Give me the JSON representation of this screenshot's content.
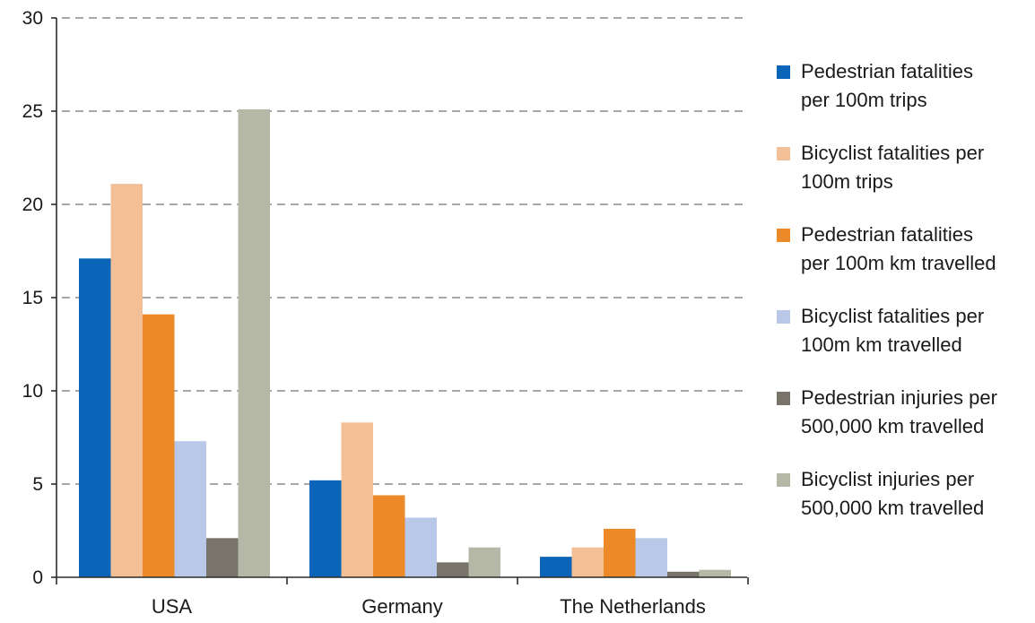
{
  "chart_data": {
    "type": "bar",
    "title": "",
    "xlabel": "",
    "ylabel": "",
    "categories": [
      "USA",
      "Germany",
      "The Netherlands"
    ],
    "ylim": [
      0,
      30
    ],
    "yticks": [
      0,
      5,
      10,
      15,
      20,
      25,
      30
    ],
    "grid": true,
    "legend_position": "right",
    "series": [
      {
        "name": "Pedestrian fatalities per 100m trips",
        "legend_lines": [
          "Pedestrian fatalities",
          "per 100m trips"
        ],
        "color": "#0a64b8",
        "values": [
          17.1,
          5.2,
          1.1
        ]
      },
      {
        "name": "Bicyclist fatalities per 100m trips",
        "legend_lines": [
          "Bicyclist fatalities per",
          "100m trips"
        ],
        "color": "#f3bf97",
        "values": [
          21.1,
          8.3,
          1.6
        ]
      },
      {
        "name": "Pedestrian fatalities per 100m km travelled",
        "legend_lines": [
          "Pedestrian fatalities",
          "per 100m km travelled"
        ],
        "color": "#ec8a28",
        "values": [
          14.1,
          4.4,
          2.6
        ]
      },
      {
        "name": "Bicyclist fatalities per 100m km travelled",
        "legend_lines": [
          "Bicyclist fatalities per",
          "100m km travelled"
        ],
        "color": "#b9c8e9",
        "values": [
          7.3,
          3.2,
          2.1
        ]
      },
      {
        "name": "Pedestrian injuries per 500,000 km travelled",
        "legend_lines": [
          "Pedestrian injuries per",
          "500,000 km travelled"
        ],
        "color": "#78746a",
        "values": [
          2.1,
          0.8,
          0.3
        ]
      },
      {
        "name": "Bicyclist injuries per 500,000 km travelled",
        "legend_lines": [
          "Bicyclist injuries per",
          "500,000 km travelled"
        ],
        "color": "#b6b8a7",
        "values": [
          25.1,
          1.6,
          0.4
        ]
      }
    ]
  }
}
